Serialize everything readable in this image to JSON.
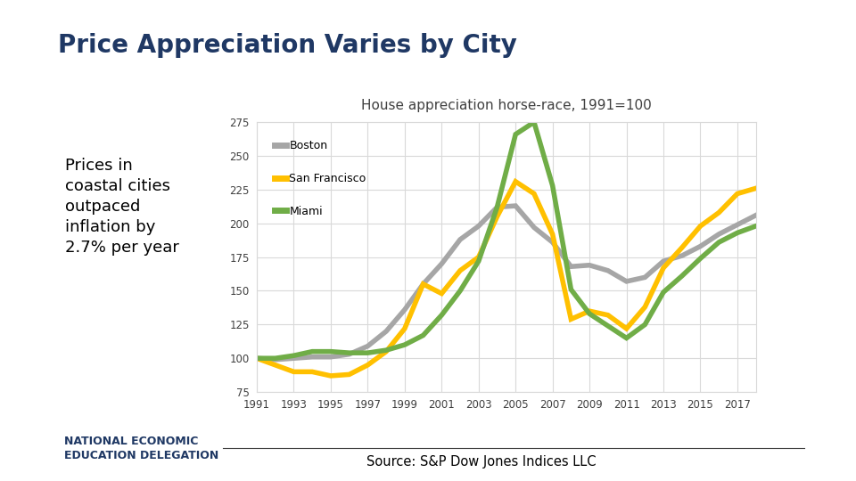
{
  "chart_data": {
    "type": "line",
    "title": "Price Appreciation Varies by City",
    "subtitle": "House appreciation horse-race, 1991=100",
    "annotation": "Prices in coastal cities outpaced inflation by 2.7% per year",
    "source": "Source: S&P Dow Jones Indices LLC",
    "logo": [
      "NATIONAL ECONOMIC",
      "EDUCATION DELEGATION"
    ],
    "x": [
      1991,
      1992,
      1993,
      1994,
      1995,
      1996,
      1997,
      1998,
      1999,
      2000,
      2001,
      2002,
      2003,
      2004,
      2005,
      2006,
      2007,
      2008,
      2009,
      2010,
      2011,
      2012,
      2013,
      2014,
      2015,
      2016,
      2017,
      2018
    ],
    "series": [
      {
        "name": "Boston",
        "color": "#a6a6a6",
        "values": [
          100,
          99,
          100,
          101,
          101,
          103,
          109,
          120,
          136,
          155,
          170,
          188,
          198,
          212,
          213,
          197,
          186,
          168,
          169,
          165,
          157,
          160,
          172,
          176,
          183,
          192,
          199,
          206
        ]
      },
      {
        "name": "San Francisco",
        "color": "#ffc000",
        "values": [
          100,
          95,
          90,
          90,
          87,
          88,
          95,
          105,
          122,
          155,
          148,
          165,
          175,
          205,
          231,
          222,
          192,
          129,
          135,
          132,
          122,
          138,
          167,
          182,
          198,
          208,
          222,
          226
        ]
      },
      {
        "name": "Miami",
        "color": "#70ad47",
        "values": [
          100,
          100,
          102,
          105,
          105,
          104,
          104,
          106,
          110,
          117,
          132,
          150,
          172,
          212,
          266,
          275,
          228,
          151,
          133,
          124,
          115,
          125,
          149,
          161,
          174,
          186,
          193,
          198
        ]
      }
    ],
    "xlim": [
      1991,
      2018
    ],
    "xticks": [
      1991,
      1993,
      1995,
      1997,
      1999,
      2001,
      2003,
      2005,
      2007,
      2009,
      2011,
      2013,
      2015,
      2017
    ],
    "ylim": [
      75,
      275
    ],
    "yticks": [
      75,
      100,
      125,
      150,
      175,
      200,
      225,
      250,
      275
    ],
    "grid": true,
    "legend": "upper left"
  }
}
